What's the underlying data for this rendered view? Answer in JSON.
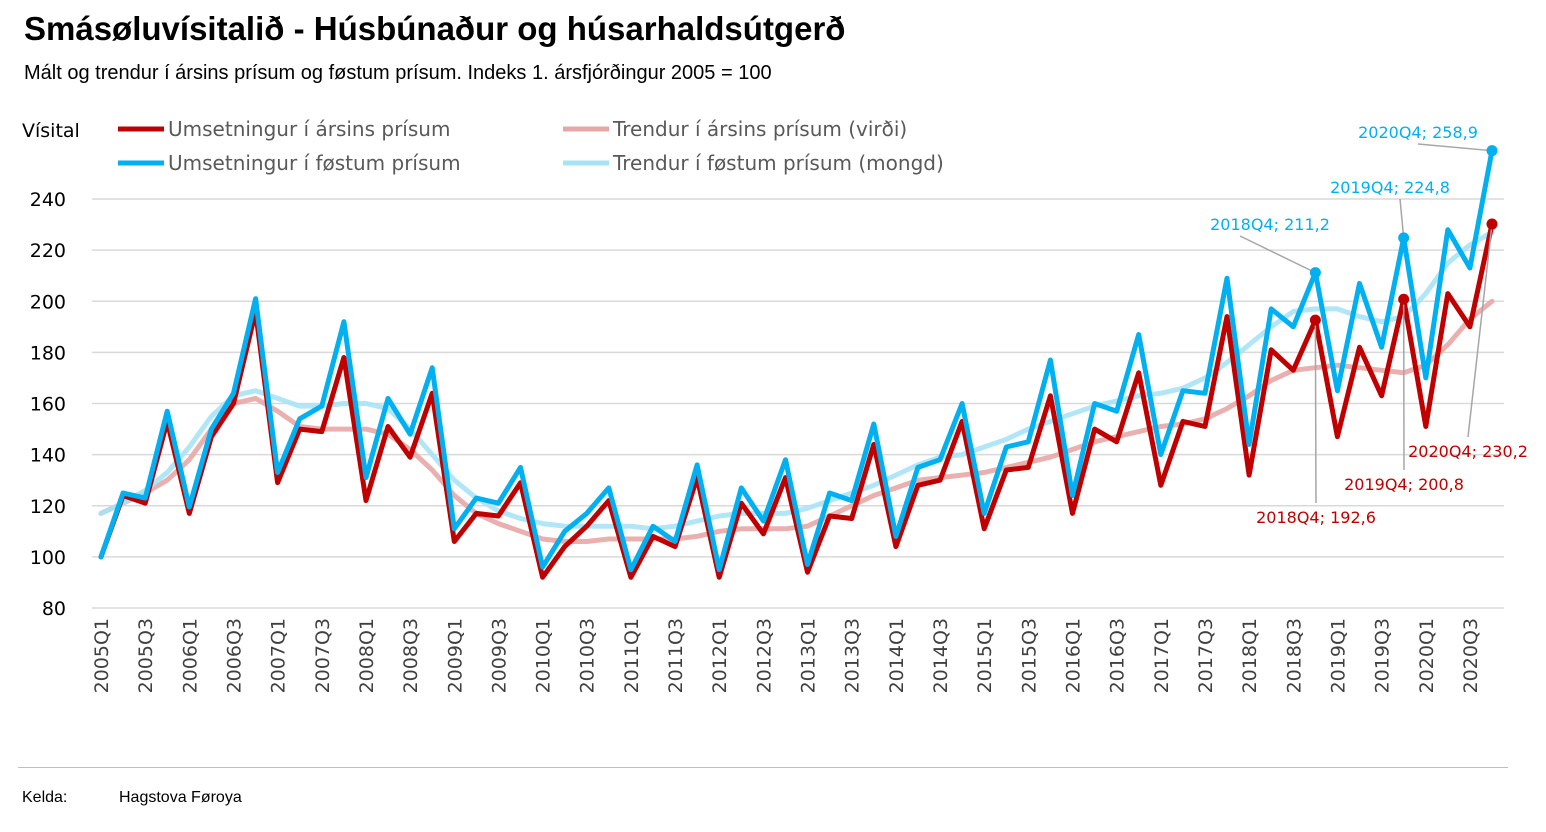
{
  "title": "Smásøluvísitalið - Húsbúnaður og húsarhaldsútgerð",
  "subtitle": "Mált og trendur í ársins prísum og føstum prísum. Indeks 1. ársfjórðingur 2005 = 100",
  "source": {
    "label": "Kelda:",
    "value": "Hagstova Føroya"
  },
  "chart_data": {
    "type": "line",
    "ylabel": "Vísital",
    "ylim": [
      80,
      250
    ],
    "yticks": [
      80,
      100,
      120,
      140,
      160,
      180,
      200,
      220,
      240
    ],
    "grid": true,
    "legend_position": "top",
    "x": [
      "2005Q1",
      "2005Q2",
      "2005Q3",
      "2005Q4",
      "2006Q1",
      "2006Q2",
      "2006Q3",
      "2006Q4",
      "2007Q1",
      "2007Q2",
      "2007Q3",
      "2007Q4",
      "2008Q1",
      "2008Q2",
      "2008Q3",
      "2008Q4",
      "2009Q1",
      "2009Q2",
      "2009Q3",
      "2009Q4",
      "2010Q1",
      "2010Q2",
      "2010Q3",
      "2010Q4",
      "2011Q1",
      "2011Q2",
      "2011Q3",
      "2011Q4",
      "2012Q1",
      "2012Q2",
      "2012Q3",
      "2012Q4",
      "2013Q1",
      "2013Q2",
      "2013Q3",
      "2013Q4",
      "2014Q1",
      "2014Q2",
      "2014Q3",
      "2014Q4",
      "2015Q1",
      "2015Q2",
      "2015Q3",
      "2015Q4",
      "2016Q1",
      "2016Q2",
      "2016Q3",
      "2016Q4",
      "2017Q1",
      "2017Q2",
      "2017Q3",
      "2017Q4",
      "2018Q1",
      "2018Q2",
      "2018Q3",
      "2018Q4",
      "2019Q1",
      "2019Q2",
      "2019Q3",
      "2019Q4",
      "2020Q1",
      "2020Q2",
      "2020Q3",
      "2020Q4"
    ],
    "xticks": [
      "2005Q1",
      "2005Q3",
      "2006Q1",
      "2006Q3",
      "2007Q1",
      "2007Q3",
      "2008Q1",
      "2008Q3",
      "2009Q1",
      "2009Q3",
      "2010Q1",
      "2010Q3",
      "2011Q1",
      "2011Q3",
      "2012Q1",
      "2012Q3",
      "2013Q1",
      "2013Q3",
      "2014Q1",
      "2014Q3",
      "2015Q1",
      "2015Q3",
      "2016Q1",
      "2016Q3",
      "2017Q1",
      "2017Q3",
      "2018Q1",
      "2018Q3",
      "2019Q1",
      "2019Q3",
      "2020Q1",
      "2020Q3"
    ],
    "series": [
      {
        "name": "Trendur í ársins prísum (virði)",
        "color": "#e8a7a7",
        "values": [
          117,
          121,
          125,
          130,
          138,
          150,
          160,
          162,
          157,
          151,
          150,
          150,
          150,
          148,
          142,
          134,
          124,
          117,
          113,
          110,
          107,
          106,
          106,
          107,
          107,
          107,
          107,
          108,
          110,
          111,
          111,
          111,
          112,
          116,
          120,
          124,
          127,
          130,
          131,
          132,
          133,
          135,
          137,
          139,
          142,
          145,
          147,
          149,
          151,
          152,
          154,
          158,
          163,
          169,
          173,
          174,
          175,
          174,
          173,
          172,
          175,
          183,
          193,
          200
        ]
      },
      {
        "name": "Trendur í føstum prísum (mongd)",
        "color": "#a8e2f7",
        "values": [
          117,
          121,
          126,
          133,
          143,
          155,
          163,
          165,
          162,
          159,
          159,
          160,
          160,
          158,
          150,
          140,
          130,
          123,
          118,
          115,
          113,
          112,
          112,
          112,
          112,
          111,
          112,
          114,
          116,
          117,
          117,
          117,
          119,
          122,
          125,
          128,
          132,
          136,
          139,
          140,
          143,
          146,
          150,
          153,
          156,
          159,
          161,
          163,
          164,
          166,
          170,
          176,
          183,
          190,
          196,
          197,
          197,
          194,
          192,
          194,
          203,
          215,
          222,
          227
        ]
      },
      {
        "name": "Umsetningur í ársins prísum",
        "color": "#c00000",
        "values": [
          100,
          124,
          121,
          153,
          117,
          147,
          160,
          196,
          129,
          150,
          149,
          178,
          122,
          151,
          139,
          164,
          106,
          117,
          116,
          129,
          92,
          104,
          112,
          122,
          92,
          108,
          104,
          131,
          92,
          121,
          109,
          131,
          94,
          116,
          115,
          144,
          104,
          128,
          130,
          153,
          111,
          134,
          135,
          163,
          117,
          150,
          145,
          172,
          128,
          153,
          151,
          194,
          132,
          181,
          173,
          192.6,
          147,
          182,
          163,
          200.8,
          151,
          203,
          190,
          230.2
        ]
      },
      {
        "name": "Umsetningur í føstum prísum",
        "color": "#00b0f0",
        "values": [
          100,
          125,
          123,
          157,
          119.5,
          150,
          164,
          201,
          133,
          154,
          159,
          192,
          131,
          162,
          148,
          174,
          111,
          123,
          121,
          135,
          96,
          110,
          117,
          127,
          95,
          112,
          106,
          136,
          95,
          127,
          114,
          138,
          97,
          125,
          122,
          152,
          108,
          135,
          138,
          160,
          117,
          143,
          145,
          177,
          124,
          160,
          157,
          187,
          140,
          165,
          164,
          209,
          144,
          197,
          190,
          211.2,
          165,
          207,
          182,
          224.8,
          170,
          228,
          213,
          258.9
        ]
      }
    ],
    "annotations": [
      {
        "text": "2018Q4; 211,2",
        "series": 3,
        "x": "2018Q4"
      },
      {
        "text": "2019Q4; 224,8",
        "series": 3,
        "x": "2019Q4"
      },
      {
        "text": "2020Q4; 258,9",
        "series": 3,
        "x": "2020Q4"
      },
      {
        "text": "2018Q4; 192,6",
        "series": 2,
        "x": "2018Q4"
      },
      {
        "text": "2019Q4; 200,8",
        "series": 2,
        "x": "2019Q4"
      },
      {
        "text": "2020Q4; 230,2",
        "series": 2,
        "x": "2020Q4"
      }
    ]
  }
}
